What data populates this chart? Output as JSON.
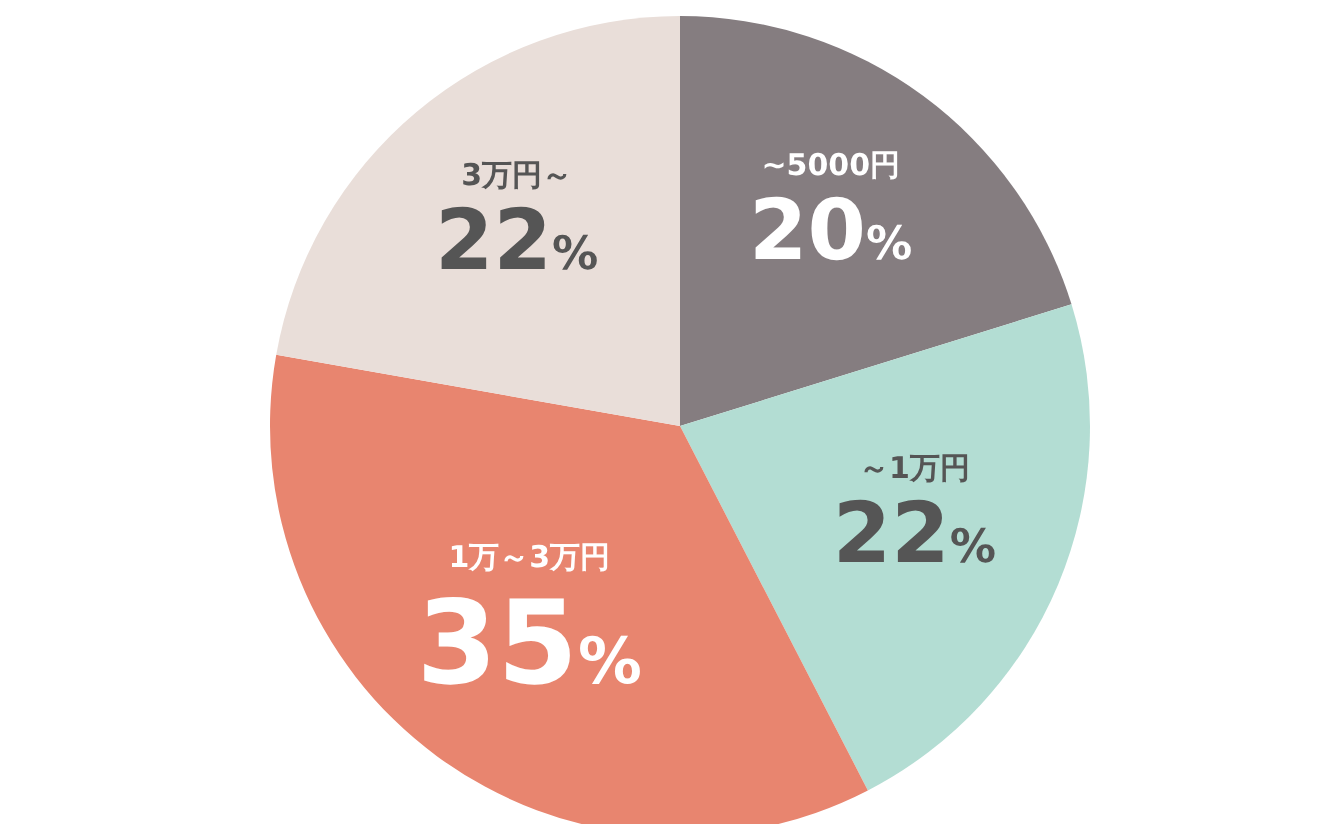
{
  "chart_data": {
    "type": "pie",
    "categories": [
      "~5000円",
      "～1万円",
      "1万～3万円",
      "3万円～"
    ],
    "values": [
      20,
      22,
      35,
      22
    ],
    "colors": [
      "#857d80",
      "#b3ddd3",
      "#e8856f",
      "#e9ded9"
    ],
    "value_labels": [
      "20%",
      "22%",
      "35%",
      "22%"
    ]
  }
}
